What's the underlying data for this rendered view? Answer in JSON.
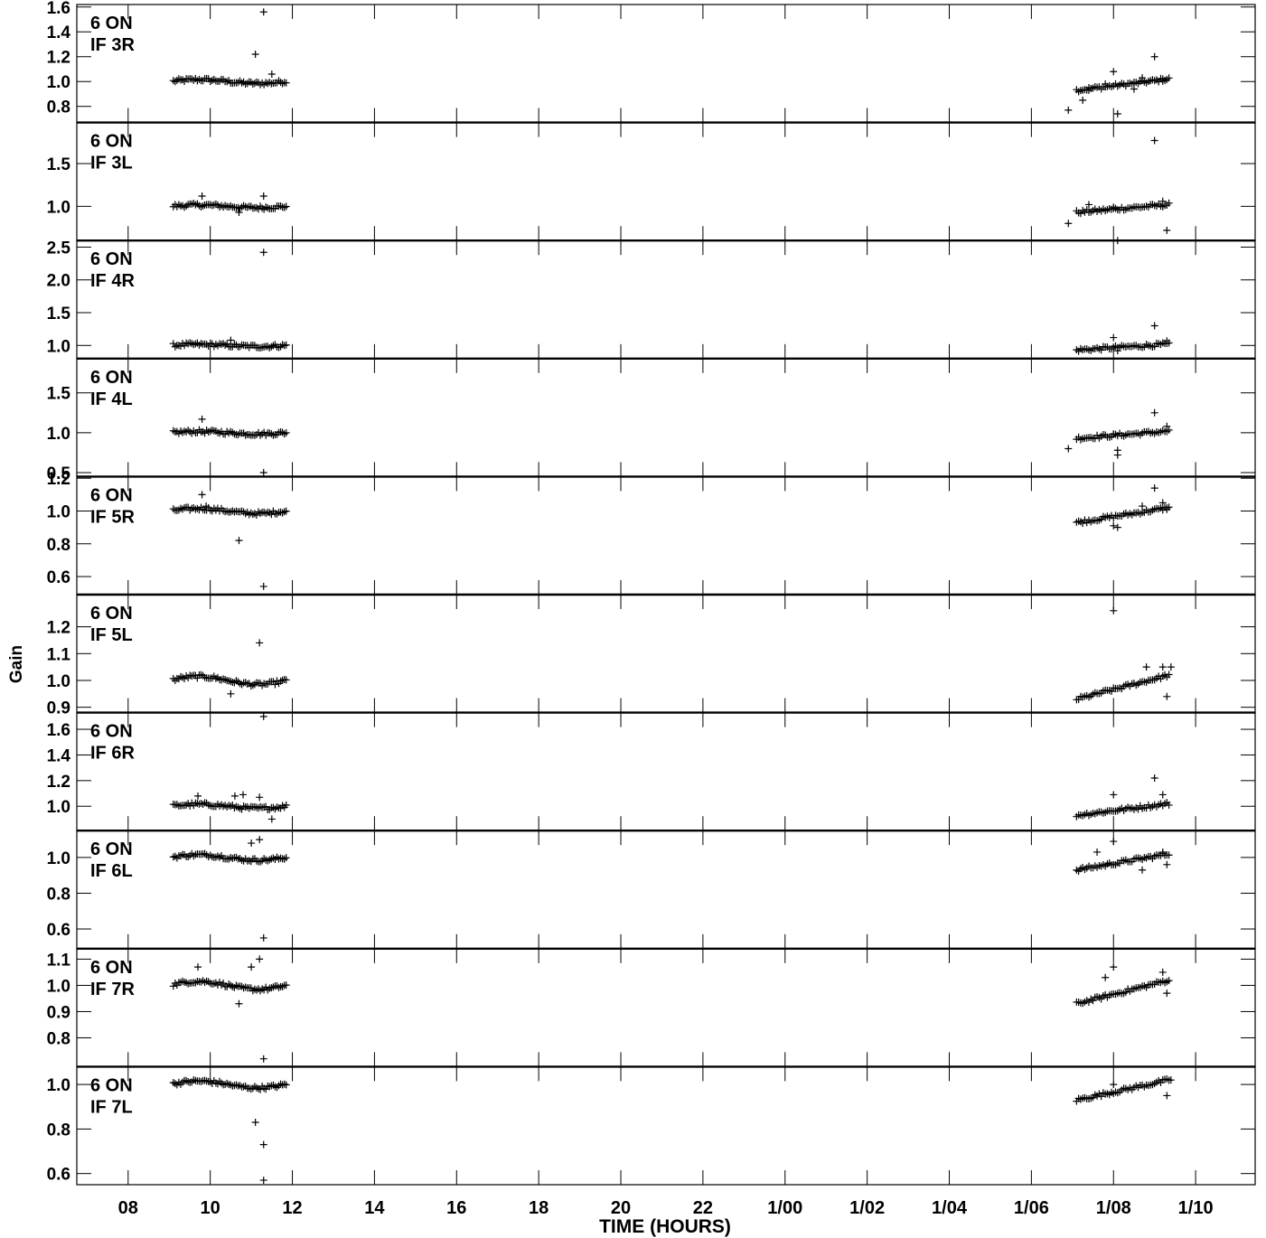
{
  "chart_data": {
    "type": "scatter",
    "ylabel": "Gain",
    "xlabel": "TIME (HOURS)",
    "x_unit": "hours since 00:00 of day 0",
    "x_range": [
      6.75,
      35.45
    ],
    "x_ticks": [
      {
        "value": 8,
        "label": "08"
      },
      {
        "value": 10,
        "label": "10"
      },
      {
        "value": 12,
        "label": "12"
      },
      {
        "value": 14,
        "label": "14"
      },
      {
        "value": 16,
        "label": "16"
      },
      {
        "value": 18,
        "label": "18"
      },
      {
        "value": 20,
        "label": "20"
      },
      {
        "value": 22,
        "label": "22"
      },
      {
        "value": 24,
        "label": "1/00"
      },
      {
        "value": 26,
        "label": "1/02"
      },
      {
        "value": 28,
        "label": "1/04"
      },
      {
        "value": 30,
        "label": "1/06"
      },
      {
        "value": 32,
        "label": "1/08"
      },
      {
        "value": 34,
        "label": "1/10"
      }
    ],
    "panels": [
      {
        "label1": "6 ON",
        "label2": "IF 3R",
        "ylim": [
          0.67,
          1.62
        ],
        "yticks": [
          0.8,
          1.0,
          1.2,
          1.4,
          1.6
        ],
        "ytick_labels": [
          "0.8",
          "1.0",
          "1.2",
          "1.4",
          "1.6"
        ],
        "points": [
          [
            11.3,
            1.56
          ],
          [
            11.1,
            1.22
          ],
          [
            11.5,
            1.06
          ],
          [
            32.0,
            1.08
          ],
          [
            32.1,
            0.74
          ],
          [
            33.0,
            1.2
          ],
          [
            31.8,
            0.98
          ],
          [
            31.4,
            0.93
          ],
          [
            31.25,
            0.85
          ],
          [
            32.5,
            0.94
          ],
          [
            33.2,
            1.02
          ],
          [
            30.9,
            0.77
          ],
          [
            32.7,
            1.03
          ]
        ]
      },
      {
        "label1": "6 ON",
        "label2": "IF 3L",
        "ylim": [
          0.6,
          1.98
        ],
        "yticks": [
          1.0,
          1.5
        ],
        "ytick_labels": [
          "1.0",
          "1.5"
        ],
        "points": [
          [
            11.3,
            1.12
          ],
          [
            9.8,
            1.12
          ],
          [
            10.7,
            0.93
          ],
          [
            33.0,
            1.77
          ],
          [
            32.1,
            0.6
          ],
          [
            33.3,
            0.72
          ],
          [
            30.9,
            0.8
          ],
          [
            32.0,
            0.99
          ],
          [
            33.2,
            1.06
          ],
          [
            31.4,
            1.02
          ]
        ]
      },
      {
        "label1": "6 ON",
        "label2": "IF 4R",
        "ylim": [
          0.8,
          2.6
        ],
        "yticks": [
          1.0,
          1.5,
          2.0,
          2.5
        ],
        "ytick_labels": [
          "1.0",
          "1.5",
          "2.0",
          "2.5"
        ],
        "points": [
          [
            11.3,
            2.42
          ],
          [
            10.5,
            1.08
          ],
          [
            33.0,
            1.3
          ],
          [
            32.0,
            1.12
          ],
          [
            32.1,
            0.92
          ],
          [
            33.3,
            1.07
          ]
        ]
      },
      {
        "label1": "6 ON",
        "label2": "IF 4L",
        "ylim": [
          0.45,
          1.93
        ],
        "yticks": [
          0.5,
          1.0,
          1.5
        ],
        "ytick_labels": [
          "0.5",
          "1.0",
          "1.5"
        ],
        "points": [
          [
            11.3,
            0.5
          ],
          [
            9.8,
            1.17
          ],
          [
            33.0,
            1.25
          ],
          [
            32.1,
            0.72
          ],
          [
            32.1,
            0.78
          ],
          [
            30.9,
            0.8
          ],
          [
            32.0,
            0.98
          ],
          [
            33.3,
            1.08
          ]
        ]
      },
      {
        "label1": "6 ON",
        "label2": "IF 5R",
        "ylim": [
          0.49,
          1.21
        ],
        "yticks": [
          0.6,
          0.8,
          1.0,
          1.2
        ],
        "ytick_labels": [
          "0.6",
          "0.8",
          "1.0",
          "1.2"
        ],
        "points": [
          [
            11.3,
            0.54
          ],
          [
            10.7,
            0.82
          ],
          [
            9.8,
            1.1
          ],
          [
            9.9,
            1.03
          ],
          [
            33.0,
            1.14
          ],
          [
            32.0,
            0.91
          ],
          [
            32.1,
            0.9
          ],
          [
            33.2,
            1.05
          ],
          [
            33.3,
            1.02
          ],
          [
            32.7,
            1.03
          ]
        ]
      },
      {
        "label1": "6 ON",
        "label2": "IF 5L",
        "ylim": [
          0.88,
          1.32
        ],
        "yticks": [
          0.9,
          1.0,
          1.1,
          1.2
        ],
        "ytick_labels": [
          "0.9",
          "1.0",
          "1.1",
          "1.2"
        ],
        "points": [
          [
            11.2,
            1.14
          ],
          [
            32.0,
            1.26
          ],
          [
            10.5,
            0.95
          ],
          [
            33.3,
            0.94
          ],
          [
            33.2,
            1.05
          ],
          [
            33.4,
            1.05
          ],
          [
            32.8,
            1.05
          ]
        ]
      },
      {
        "label1": "6 ON",
        "label2": "IF 6R",
        "ylim": [
          0.81,
          1.73
        ],
        "yticks": [
          1.0,
          1.2,
          1.4,
          1.6
        ],
        "ytick_labels": [
          "1.0",
          "1.2",
          "1.4",
          "1.6"
        ],
        "points": [
          [
            11.3,
            1.7
          ],
          [
            9.7,
            1.08
          ],
          [
            10.6,
            1.08
          ],
          [
            10.8,
            1.09
          ],
          [
            11.2,
            1.07
          ],
          [
            33.0,
            1.22
          ],
          [
            32.0,
            1.09
          ],
          [
            33.2,
            1.09
          ],
          [
            11.5,
            0.9
          ]
        ]
      },
      {
        "label1": "6 ON",
        "label2": "IF 6L",
        "ylim": [
          0.49,
          1.15
        ],
        "yticks": [
          0.6,
          0.8,
          1.0
        ],
        "ytick_labels": [
          "0.6",
          "0.8",
          "1.0"
        ],
        "points": [
          [
            11.3,
            0.55
          ],
          [
            11.2,
            1.1
          ],
          [
            11.0,
            1.08
          ],
          [
            32.0,
            1.09
          ],
          [
            31.6,
            1.03
          ],
          [
            32.7,
            0.93
          ],
          [
            33.3,
            0.96
          ],
          [
            33.2,
            1.03
          ]
        ]
      },
      {
        "label1": "6 ON",
        "label2": "IF 7R",
        "ylim": [
          0.69,
          1.14
        ],
        "yticks": [
          0.8,
          0.9,
          1.0,
          1.1
        ],
        "ytick_labels": [
          "0.8",
          "0.9",
          "1.0",
          "1.1"
        ],
        "points": [
          [
            11.3,
            0.72
          ],
          [
            11.2,
            1.1
          ],
          [
            11.0,
            1.07
          ],
          [
            9.7,
            1.07
          ],
          [
            10.7,
            0.93
          ],
          [
            32.0,
            1.07
          ],
          [
            31.8,
            1.03
          ],
          [
            33.3,
            0.97
          ],
          [
            33.2,
            1.05
          ]
        ]
      },
      {
        "label1": "6 ON",
        "label2": "IF 7L",
        "ylim": [
          0.55,
          1.08
        ],
        "yticks": [
          0.6,
          0.8,
          1.0
        ],
        "ytick_labels": [
          "0.6",
          "0.8",
          "1.0"
        ],
        "points": [
          [
            11.3,
            0.57
          ],
          [
            11.3,
            0.73
          ],
          [
            11.1,
            0.83
          ],
          [
            32.0,
            1.0
          ],
          [
            33.4,
            1.02
          ],
          [
            33.3,
            0.95
          ]
        ]
      }
    ]
  }
}
